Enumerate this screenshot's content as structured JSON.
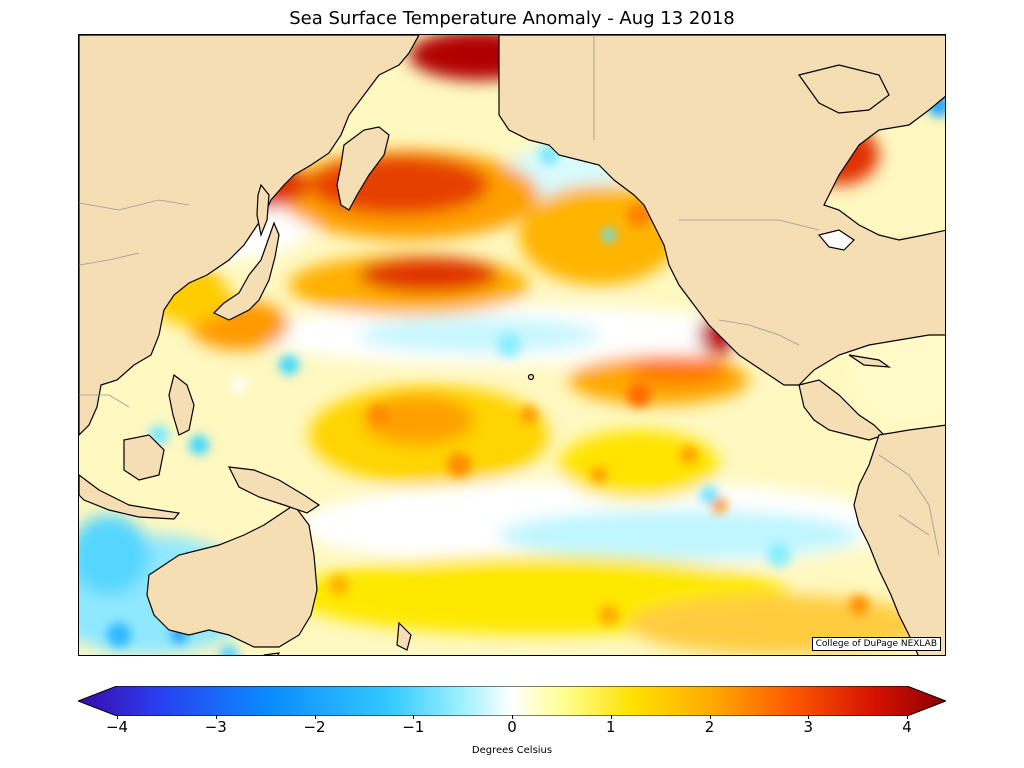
{
  "title": "Sea Surface Temperature Anomaly - Aug 13 2018",
  "credit": "College of DuPage NEXLAB",
  "colorbar": {
    "label": "Degrees Celsius",
    "min": -4,
    "max": 4,
    "ticks": [
      "−4",
      "−3",
      "−2",
      "−1",
      "0",
      "1",
      "2",
      "3",
      "4"
    ],
    "colors": [
      "#3a0aa6",
      "#2a3cf0",
      "#0a8cff",
      "#34c9ff",
      "#9af0ff",
      "#ffffff",
      "#ffff90",
      "#ffe000",
      "#ffaa00",
      "#ff5a00",
      "#d41000",
      "#8a0000"
    ]
  },
  "map": {
    "land_color": "#f5deb3",
    "ocean_base_color": "#fff6b0",
    "region": "Pacific Ocean"
  }
}
